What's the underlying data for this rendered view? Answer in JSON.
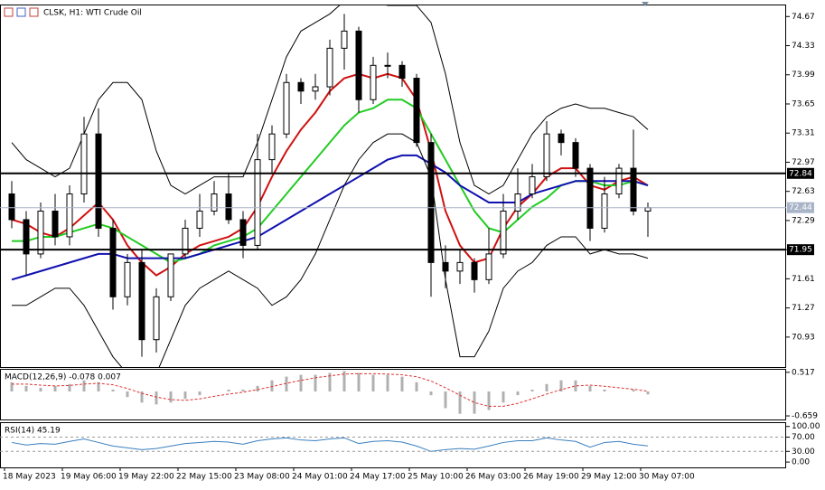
{
  "chart_data": [
    {
      "type": "candlestick",
      "title": "CLSK, H1:  WTI Crude Oil",
      "categories": [
        "18 May 2023",
        null,
        null,
        null,
        "19 May 06:00",
        null,
        null,
        null,
        "19 May 22:00",
        null,
        null,
        null,
        "22 May 15:00",
        null,
        null,
        null,
        "23 May 08:00",
        null,
        null,
        null,
        "24 May 01:00",
        null,
        null,
        null,
        "24 May 17:00",
        null,
        null,
        null,
        "25 May 10:00",
        null,
        null,
        null,
        "26 May 03:00",
        null,
        null,
        null,
        "26 May 19:00",
        null,
        null,
        null,
        "29 May 12:00",
        null,
        null,
        null,
        "30 May 07:00"
      ],
      "open": [
        72.6,
        72.3,
        71.9,
        72.4,
        72.1,
        72.6,
        73.3,
        72.2,
        71.4,
        71.8,
        70.9,
        71.4,
        71.9,
        72.2,
        72.4,
        72.6,
        72.3,
        72.0,
        73.0,
        73.3,
        73.9,
        73.8,
        73.85,
        74.3,
        74.5,
        73.7,
        74.1,
        74.1,
        73.95,
        73.2,
        71.8,
        71.7,
        71.8,
        71.6,
        71.9,
        72.4,
        72.6,
        72.8,
        73.3,
        73.2,
        72.9,
        72.2,
        72.6,
        72.9,
        72.4
      ],
      "high": [
        72.75,
        72.4,
        72.5,
        72.6,
        72.7,
        73.5,
        73.6,
        72.3,
        71.9,
        71.95,
        71.5,
        71.9,
        72.3,
        72.6,
        72.75,
        72.85,
        72.4,
        73.3,
        73.4,
        74.0,
        73.95,
        74.0,
        74.4,
        74.7,
        74.55,
        74.2,
        74.25,
        74.15,
        74.0,
        73.3,
        72.0,
        71.95,
        71.85,
        72.2,
        72.6,
        72.9,
        72.95,
        73.45,
        73.35,
        73.25,
        72.95,
        72.8,
        72.95,
        73.35,
        72.5
      ],
      "low": [
        72.2,
        71.65,
        71.85,
        72.0,
        72.0,
        72.5,
        72.1,
        71.25,
        71.3,
        70.7,
        70.75,
        71.35,
        71.85,
        72.1,
        72.35,
        72.25,
        71.85,
        71.95,
        72.85,
        73.25,
        73.65,
        73.7,
        73.75,
        74.05,
        73.55,
        73.65,
        73.95,
        73.85,
        73.15,
        71.4,
        71.5,
        71.55,
        71.45,
        71.55,
        71.85,
        72.3,
        72.55,
        72.75,
        73.05,
        72.8,
        72.05,
        72.15,
        72.55,
        72.35,
        72.1
      ],
      "close": [
        72.3,
        71.9,
        72.4,
        72.1,
        72.6,
        73.3,
        72.2,
        71.4,
        71.8,
        70.9,
        71.4,
        71.9,
        72.2,
        72.4,
        72.6,
        72.3,
        72.0,
        73.0,
        73.3,
        73.9,
        73.8,
        73.85,
        74.3,
        74.5,
        73.7,
        74.1,
        74.1,
        73.95,
        73.2,
        71.8,
        71.7,
        71.8,
        71.6,
        71.9,
        72.4,
        72.6,
        72.8,
        73.3,
        73.2,
        72.9,
        72.2,
        72.6,
        72.9,
        72.4,
        72.44
      ],
      "series": [
        {
          "color": "#d01010",
          "values": [
            72.3,
            72.25,
            72.15,
            72.1,
            72.2,
            72.35,
            72.5,
            72.3,
            72.0,
            71.8,
            71.65,
            71.75,
            71.9,
            72.0,
            72.05,
            72.1,
            72.2,
            72.45,
            72.8,
            73.1,
            73.35,
            73.55,
            73.8,
            73.95,
            74.0,
            73.95,
            74.0,
            73.95,
            73.7,
            73.1,
            72.4,
            72.0,
            71.8,
            71.85,
            72.2,
            72.45,
            72.6,
            72.8,
            72.9,
            72.9,
            72.7,
            72.65,
            72.75,
            72.8,
            72.7
          ]
        },
        {
          "color": "#22cc22",
          "values": [
            72.05,
            72.05,
            72.1,
            72.1,
            72.15,
            72.2,
            72.25,
            72.2,
            72.1,
            72.0,
            71.9,
            71.8,
            71.85,
            71.9,
            72.0,
            72.05,
            72.1,
            72.2,
            72.4,
            72.6,
            72.8,
            73.0,
            73.2,
            73.4,
            73.55,
            73.6,
            73.7,
            73.7,
            73.6,
            73.3,
            73.0,
            72.7,
            72.4,
            72.2,
            72.15,
            72.3,
            72.45,
            72.55,
            72.7,
            72.75,
            72.75,
            72.7,
            72.7,
            72.75,
            72.7
          ]
        },
        {
          "color": "#1010b0",
          "values": [
            71.6,
            71.65,
            71.7,
            71.75,
            71.8,
            71.85,
            71.9,
            71.9,
            71.85,
            71.85,
            71.85,
            71.85,
            71.85,
            71.9,
            71.95,
            72.0,
            72.05,
            72.1,
            72.2,
            72.3,
            72.4,
            72.5,
            72.6,
            72.7,
            72.8,
            72.9,
            73.0,
            73.05,
            73.05,
            72.95,
            72.85,
            72.7,
            72.6,
            72.5,
            72.5,
            72.5,
            72.6,
            72.65,
            72.7,
            72.75,
            72.75,
            72.75,
            72.75,
            72.75,
            72.7
          ]
        },
        {
          "color": "#000000",
          "values": [
            73.2,
            73.0,
            72.9,
            72.8,
            72.9,
            73.3,
            73.7,
            73.9,
            73.9,
            73.7,
            73.1,
            72.7,
            72.6,
            72.7,
            72.8,
            72.8,
            72.8,
            73.2,
            73.7,
            74.2,
            74.5,
            74.6,
            74.7,
            74.85,
            74.85,
            74.85,
            74.8,
            74.8,
            74.8,
            74.6,
            74.0,
            73.2,
            72.7,
            72.6,
            72.7,
            73.0,
            73.3,
            73.5,
            73.6,
            73.65,
            73.6,
            73.6,
            73.55,
            73.5,
            73.35
          ]
        },
        {
          "color": "#000000",
          "values": [
            71.3,
            71.3,
            71.4,
            71.5,
            71.5,
            71.3,
            71.0,
            70.7,
            70.5,
            70.4,
            70.5,
            70.9,
            71.3,
            71.5,
            71.6,
            71.7,
            71.6,
            71.5,
            71.3,
            71.4,
            71.6,
            71.9,
            72.3,
            72.7,
            73.0,
            73.2,
            73.3,
            73.3,
            73.2,
            72.8,
            71.6,
            70.7,
            70.7,
            71.0,
            71.5,
            71.7,
            71.8,
            72.0,
            72.1,
            72.1,
            71.9,
            71.95,
            71.9,
            71.9,
            71.85
          ]
        }
      ],
      "levels": [
        72.84,
        71.95
      ],
      "current_price": 72.44,
      "ylim": [
        70.57,
        74.81
      ],
      "yticks": [
        74.67,
        74.33,
        73.99,
        73.65,
        73.31,
        72.97,
        72.63,
        72.29,
        71.95,
        71.61,
        71.27,
        70.93
      ]
    },
    {
      "type": "macd",
      "title": "MACD(12,26,9) -0.078 0.007",
      "histogram": {
        "color": "#b0b0b0",
        "values": [
          0.25,
          0.15,
          0.1,
          0.15,
          0.2,
          0.3,
          0.25,
          0.05,
          -0.15,
          -0.3,
          -0.35,
          -0.3,
          -0.2,
          -0.1,
          0.0,
          0.05,
          0.05,
          0.15,
          0.3,
          0.4,
          0.45,
          0.45,
          0.5,
          0.55,
          0.5,
          0.45,
          0.45,
          0.4,
          0.25,
          -0.1,
          -0.45,
          -0.6,
          -0.6,
          -0.5,
          -0.3,
          -0.1,
          0.05,
          0.2,
          0.3,
          0.3,
          0.15,
          0.05,
          0.0,
          0.05,
          -0.078
        ]
      },
      "signal": {
        "color": "#e03030",
        "values": [
          0.2,
          0.2,
          0.17,
          0.15,
          0.16,
          0.2,
          0.22,
          0.18,
          0.08,
          -0.05,
          -0.15,
          -0.22,
          -0.24,
          -0.2,
          -0.13,
          -0.07,
          -0.02,
          0.05,
          0.13,
          0.22,
          0.3,
          0.37,
          0.42,
          0.47,
          0.48,
          0.48,
          0.47,
          0.45,
          0.4,
          0.28,
          0.1,
          -0.1,
          -0.3,
          -0.4,
          -0.4,
          -0.32,
          -0.2,
          -0.07,
          0.05,
          0.15,
          0.17,
          0.14,
          0.1,
          0.06,
          0.007
        ]
      },
      "ylim": [
        -0.78,
        0.61
      ],
      "yticks": [
        0.517,
        -0.659
      ]
    },
    {
      "type": "rsi",
      "title": "RSI(14) 45.19",
      "color": "#3a7fc0",
      "values": [
        55,
        48,
        52,
        50,
        58,
        65,
        55,
        45,
        40,
        35,
        38,
        45,
        52,
        55,
        58,
        56,
        50,
        60,
        65,
        68,
        62,
        60,
        65,
        68,
        52,
        58,
        60,
        56,
        45,
        30,
        35,
        38,
        36,
        45,
        55,
        60,
        60,
        68,
        62,
        58,
        42,
        55,
        58,
        50,
        45.19
      ],
      "levels": [
        70,
        30
      ],
      "ylim": [
        -15,
        112
      ],
      "yticks": [
        {
          "value": 100,
          "label": "100.00"
        },
        {
          "value": 70,
          "label": "70.00"
        },
        {
          "value": 30,
          "label": "30.00"
        },
        {
          "value": 0,
          "label": "0.00"
        }
      ]
    }
  ]
}
